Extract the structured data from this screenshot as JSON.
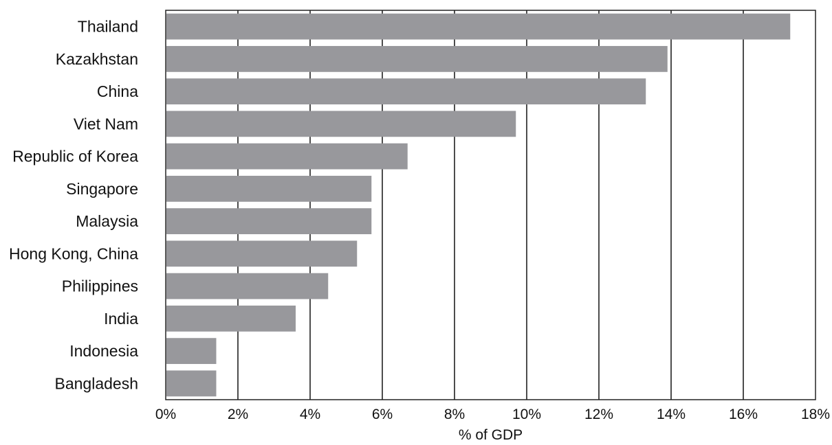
{
  "chart_data": {
    "type": "bar",
    "orientation": "horizontal",
    "categories": [
      "Thailand",
      "Kazakhstan",
      "China",
      "Viet Nam",
      "Republic of Korea",
      "Singapore",
      "Malaysia",
      "Hong Kong, China",
      "Philippines",
      "India",
      "Indonesia",
      "Bangladesh"
    ],
    "values": [
      17.3,
      13.9,
      13.3,
      9.7,
      6.7,
      5.7,
      5.7,
      5.3,
      4.5,
      3.6,
      1.4,
      1.4
    ],
    "xlabel": "% of GDP",
    "ylabel": "",
    "xlim": [
      0,
      18
    ],
    "xticks": [
      0,
      2,
      4,
      6,
      8,
      10,
      12,
      14,
      16,
      18
    ],
    "xtick_labels": [
      "0%",
      "2%",
      "4%",
      "6%",
      "8%",
      "10%",
      "12%",
      "14%",
      "16%",
      "18%"
    ],
    "grid": "vertical",
    "bar_color": "#98989c",
    "grid_color": "#111111"
  }
}
